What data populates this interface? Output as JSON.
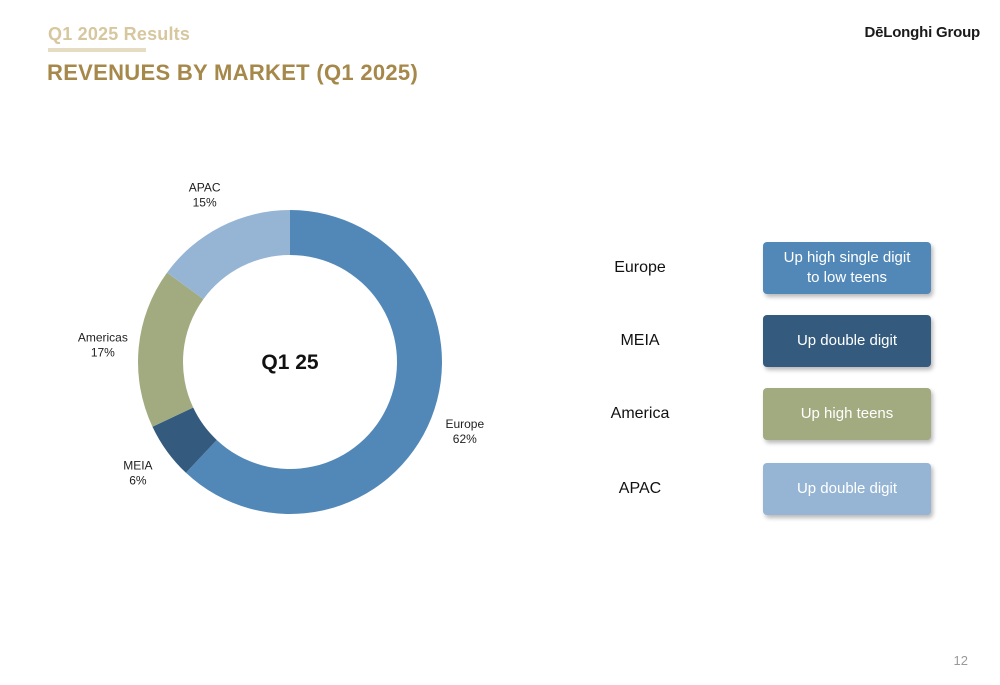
{
  "header": {
    "subtitle": "Q1 2025 Results",
    "title": "REVENUES BY MARKET (Q1 2025)",
    "brand": "DēLonghi Group"
  },
  "page_number": "12",
  "chart_data": {
    "type": "pie",
    "style": "donut",
    "center_label": "Q1 25",
    "slices": [
      {
        "label": "Europe",
        "value": 62,
        "value_label": "62%",
        "color": "#5288b8"
      },
      {
        "label": "MEIA",
        "value": 6,
        "value_label": "6%",
        "color": "#345b7e"
      },
      {
        "label": "Americas",
        "value": 17,
        "value_label": "17%",
        "color": "#a2ab80"
      },
      {
        "label": "APAC",
        "value": 15,
        "value_label": "15%",
        "color": "#96b5d4"
      }
    ]
  },
  "growth_table": [
    {
      "region": "Europe",
      "growth": "Up high single digit\nto low teens",
      "color": "#5288b8"
    },
    {
      "region": "MEIA",
      "growth": "Up double digit",
      "color": "#345b7e"
    },
    {
      "region": "America",
      "growth": "Up high teens",
      "color": "#a2ab80"
    },
    {
      "region": "APAC",
      "growth": "Up double digit",
      "color": "#96b5d4"
    }
  ]
}
